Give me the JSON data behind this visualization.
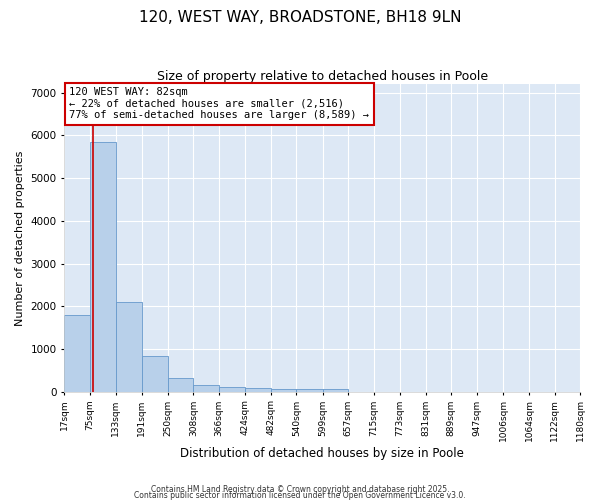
{
  "title": "120, WEST WAY, BROADSTONE, BH18 9LN",
  "subtitle": "Size of property relative to detached houses in Poole",
  "xlabel": "Distribution of detached houses by size in Poole",
  "ylabel": "Number of detached properties",
  "bar_edges": [
    17,
    75,
    133,
    191,
    250,
    308,
    366,
    424,
    482,
    540,
    599,
    657,
    715,
    773,
    831,
    889,
    947,
    1006,
    1064,
    1122,
    1180
  ],
  "bar_heights": [
    1800,
    5850,
    2100,
    830,
    320,
    165,
    100,
    85,
    60,
    60,
    55,
    0,
    0,
    0,
    0,
    0,
    0,
    0,
    0,
    0
  ],
  "bar_color": "#b8d0ea",
  "bar_edge_color": "#6699cc",
  "vline_x": 82,
  "vline_color": "#cc0000",
  "annotation_text": "120 WEST WAY: 82sqm\n← 22% of detached houses are smaller (2,516)\n77% of semi-detached houses are larger (8,589) →",
  "annotation_box_color": "#cc0000",
  "annotation_bg": "#ffffff",
  "ylim": [
    0,
    7200
  ],
  "yticks": [
    0,
    1000,
    2000,
    3000,
    4000,
    5000,
    6000,
    7000
  ],
  "background_color": "#dde8f5",
  "grid_color": "#ffffff",
  "fig_bg_color": "#ffffff",
  "footer_line1": "Contains HM Land Registry data © Crown copyright and database right 2025.",
  "footer_line2": "Contains public sector information licensed under the Open Government Licence v3.0.",
  "title_fontsize": 11,
  "subtitle_fontsize": 9,
  "tick_fontsize": 6.5,
  "ylabel_fontsize": 8,
  "xlabel_fontsize": 8.5
}
